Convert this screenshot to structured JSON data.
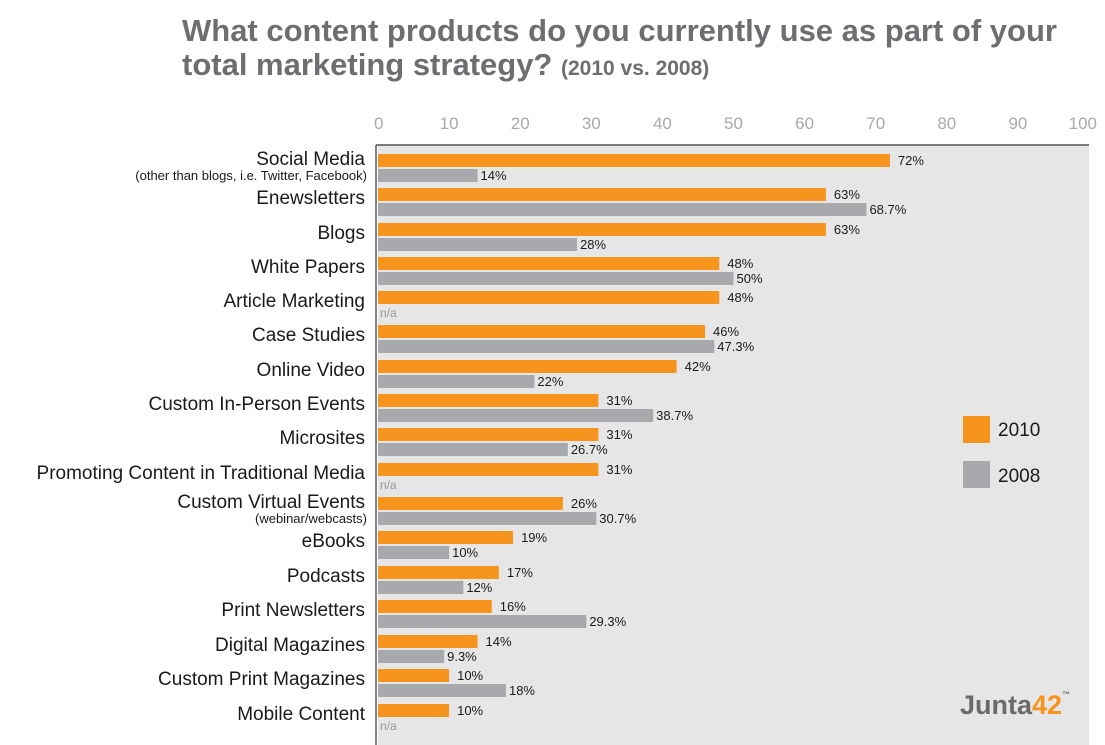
{
  "title": {
    "main": "What content products do you currently use as part of your total marketing strategy?",
    "sub": "(2010 vs. 2008)"
  },
  "logo": {
    "text": "Junta",
    "number": "42",
    "tm": "™"
  },
  "chart_data": {
    "type": "bar",
    "orientation": "horizontal",
    "title": "What content products do you currently use as part of your total marketing strategy? (2010 vs. 2008)",
    "xlim": [
      0,
      100
    ],
    "xticks": [
      0,
      10,
      20,
      30,
      40,
      50,
      60,
      70,
      80,
      90,
      100
    ],
    "legend": "right",
    "colors": {
      "2010": "#f7941d",
      "2008": "#a7a9ac",
      "plot_bg": "#e6e6e7"
    },
    "categories": [
      "Social Media",
      "Enewsletters",
      "Blogs",
      "White Papers",
      "Article Marketing",
      "Case Studies",
      "Online Video",
      "Custom In-Person Events",
      "Microsites",
      "Promoting Content in Traditional Media",
      "Custom Virtual Events",
      "eBooks",
      "Podcasts",
      "Print Newsletters",
      "Digital Magazines",
      "Custom Print Magazines",
      "Mobile Content"
    ],
    "category_sublabels": {
      "Social Media": "(other than blogs, i.e. Twitter, Facebook)",
      "Custom Virtual Events": "(webinar/webcasts)"
    },
    "series": [
      {
        "name": "2010",
        "values": [
          72,
          63,
          63,
          48,
          48,
          46,
          42,
          31,
          31,
          31,
          26,
          19,
          17,
          16,
          14,
          10,
          10
        ],
        "labels": [
          "72%",
          "63%",
          "63%",
          "48%",
          "48%",
          "46%",
          "42%",
          "31%",
          "31%",
          "31%",
          "26%",
          "19%",
          "17%",
          "16%",
          "14%",
          "10%",
          "10%"
        ]
      },
      {
        "name": "2008",
        "values": [
          14,
          68.7,
          28,
          50,
          null,
          47.3,
          22,
          38.7,
          26.7,
          null,
          30.7,
          10,
          12,
          29.3,
          9.3,
          18,
          null
        ],
        "labels": [
          "14%",
          "68.7%",
          "28%",
          "50%",
          "n/a",
          "47.3%",
          "22%",
          "38.7%",
          "26.7%",
          "n/a",
          "30.7%",
          "10%",
          "12%",
          "29.3%",
          "9.3%",
          "18%",
          "n/a"
        ]
      }
    ]
  }
}
